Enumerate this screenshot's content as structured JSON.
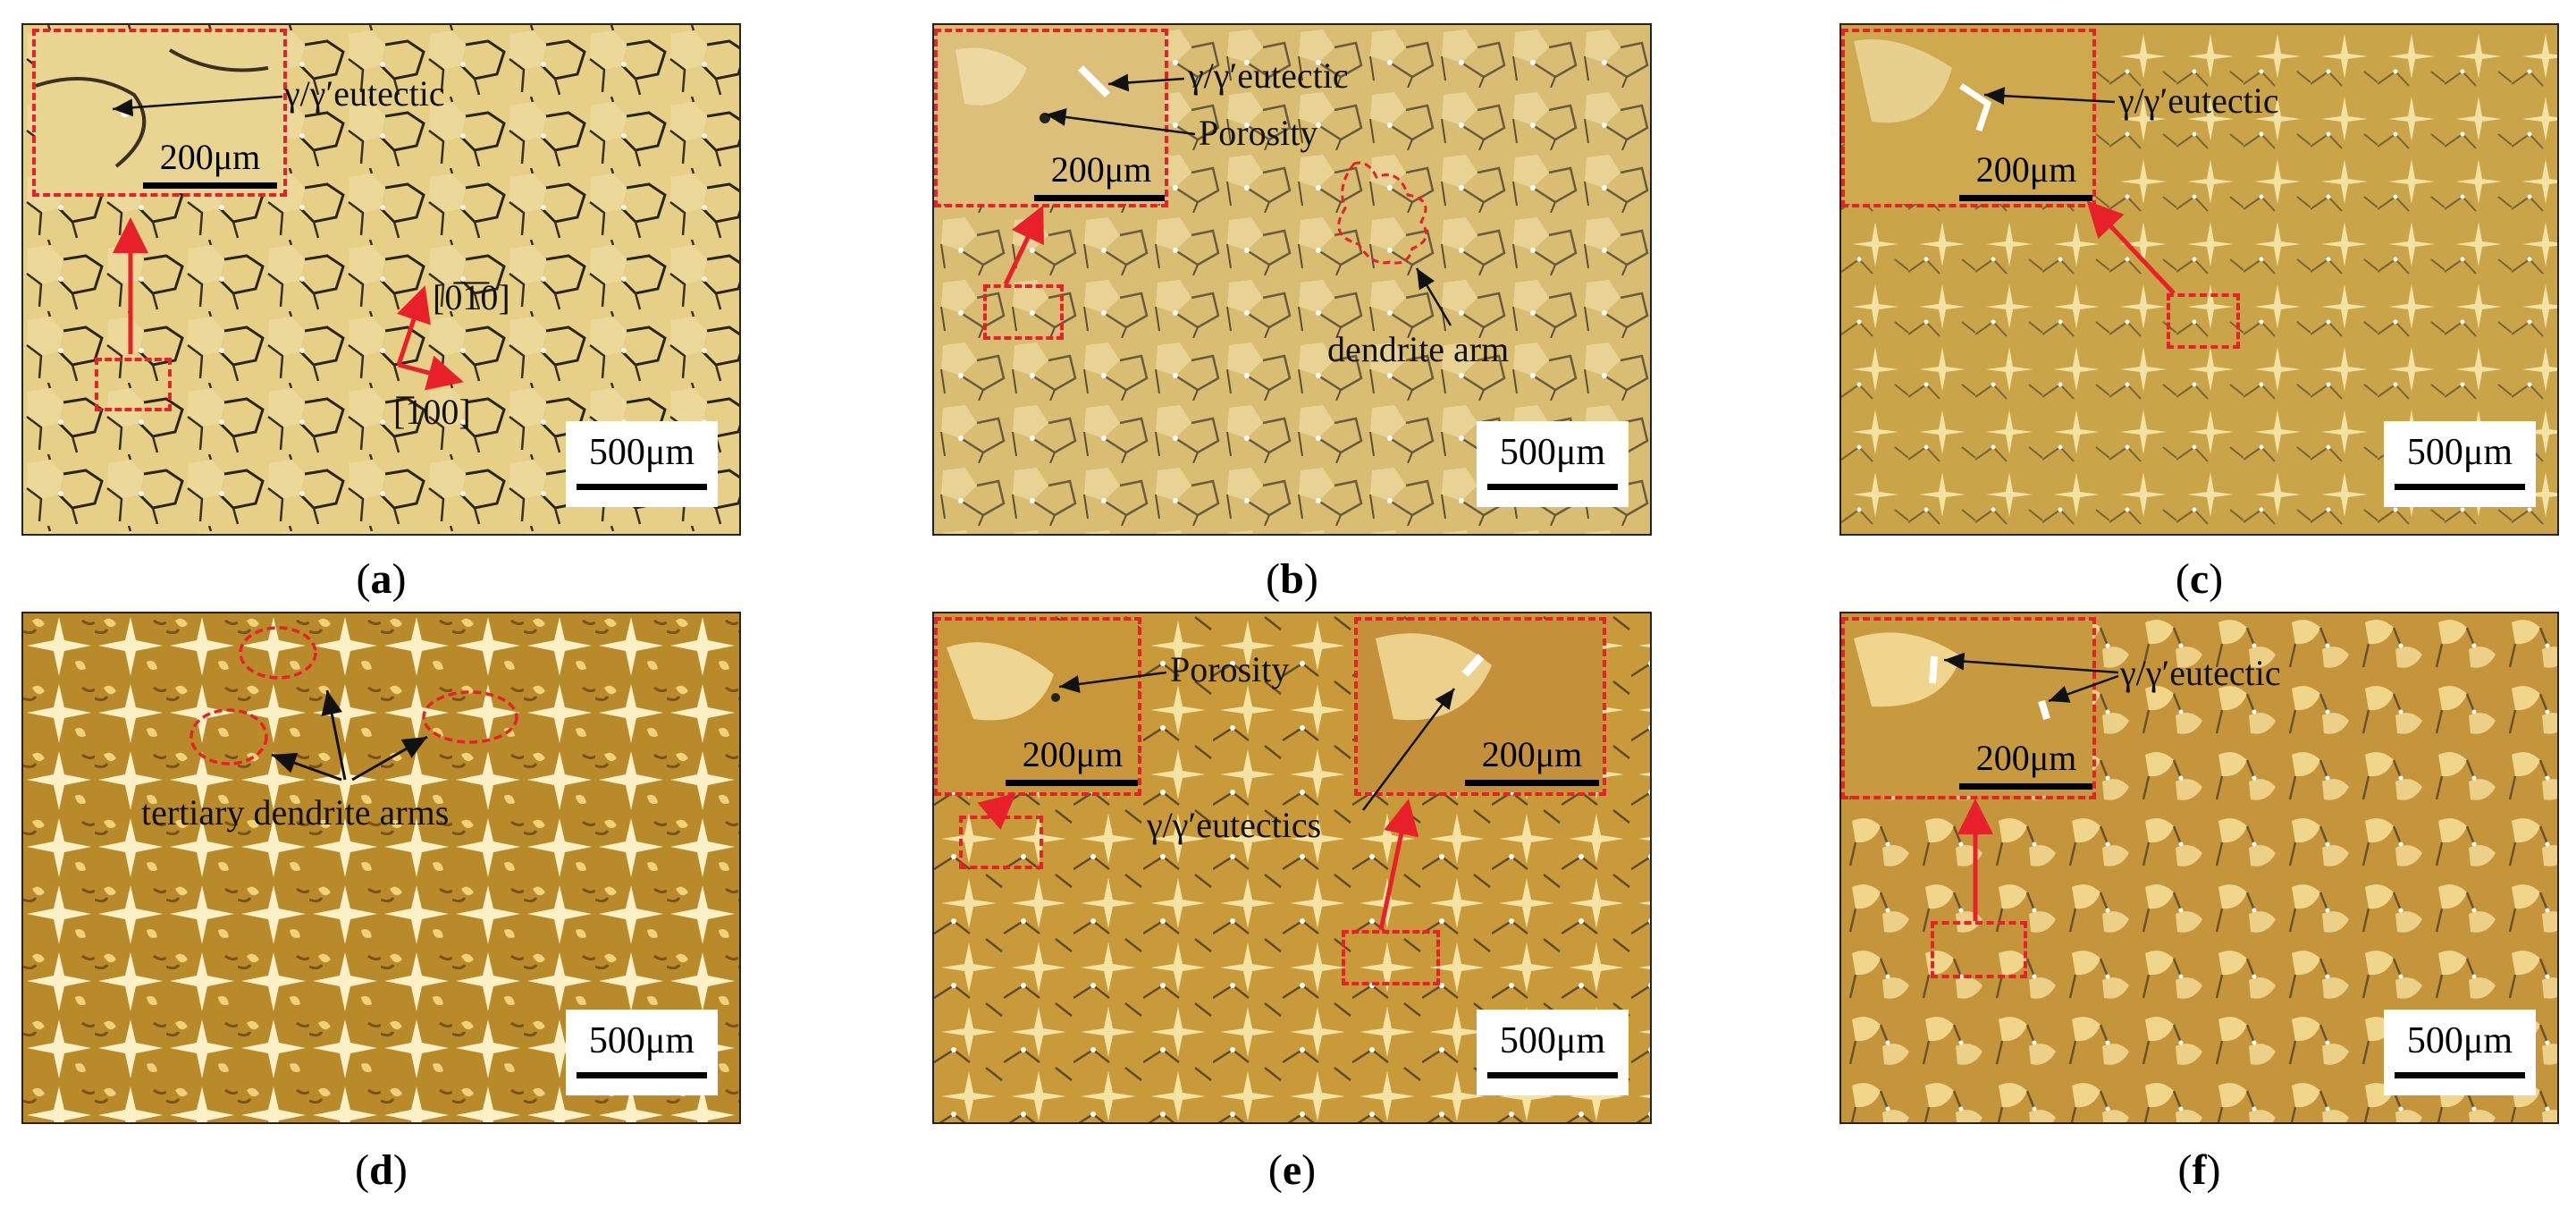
{
  "panels": [
    {
      "id": "a",
      "caption": "a",
      "scale_bar": "500μm",
      "inset_scale": "200μm",
      "labels": {
        "eutectic": "γ/γ′eutectic",
        "dir1": "[0̅1̅0]",
        "dir2": "[̅100]"
      }
    },
    {
      "id": "b",
      "caption": "b",
      "scale_bar": "500μm",
      "inset_scale": "200μm",
      "labels": {
        "eutectic": "γ/γ′eutectic",
        "porosity": "Porosity",
        "dendrite": "dendrite arm"
      }
    },
    {
      "id": "c",
      "caption": "c",
      "scale_bar": "500μm",
      "inset_scale": "200μm",
      "labels": {
        "eutectic": "γ/γ′eutectic"
      }
    },
    {
      "id": "d",
      "caption": "d",
      "scale_bar": "500μm",
      "labels": {
        "tertiary": "tertiary dendrite arms"
      }
    },
    {
      "id": "e",
      "caption": "e",
      "scale_bar": "500μm",
      "inset_scale": "200μm",
      "inset_scale_2": "200μm",
      "labels": {
        "porosity": "Porosity",
        "eutectics": "γ/γ′eutectics"
      }
    },
    {
      "id": "f",
      "caption": "f",
      "scale_bar": "500μm",
      "inset_scale": "200μm",
      "labels": {
        "eutectic": "γ/γ′eutectic"
      }
    }
  ],
  "colors": {
    "accent": "#e8202a",
    "annotation": "#111111"
  }
}
